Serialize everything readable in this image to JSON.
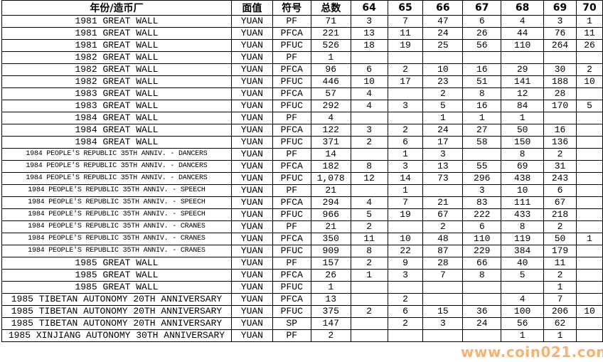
{
  "headers": [
    "年份/造币厂",
    "面值",
    "符号",
    "总数",
    "64",
    "65",
    "66",
    "67",
    "68",
    "69",
    "70"
  ],
  "rows": [
    [
      "1981 GREAT WALL",
      "YUAN",
      "PF",
      "71",
      "3",
      "7",
      "47",
      "6",
      "4",
      "3",
      "1"
    ],
    [
      "1981 GREAT WALL",
      "YUAN",
      "PFCA",
      "221",
      "13",
      "11",
      "24",
      "26",
      "44",
      "76",
      "11"
    ],
    [
      "1981 GREAT WALL",
      "YUAN",
      "PFUC",
      "526",
      "18",
      "19",
      "25",
      "56",
      "110",
      "264",
      "26"
    ],
    [
      "1982 GREAT WALL",
      "YUAN",
      "PF",
      "1",
      "",
      "",
      "",
      "",
      "",
      "",
      ""
    ],
    [
      "1982 GREAT WALL",
      "YUAN",
      "PFCA",
      "96",
      "6",
      "2",
      "10",
      "16",
      "29",
      "30",
      "2"
    ],
    [
      "1982 GREAT WALL",
      "YUAN",
      "PFUC",
      "446",
      "10",
      "17",
      "23",
      "51",
      "141",
      "188",
      "10"
    ],
    [
      "1983 GREAT WALL",
      "YUAN",
      "PFCA",
      "57",
      "4",
      "",
      "2",
      "8",
      "12",
      "28",
      ""
    ],
    [
      "1983 GREAT WALL",
      "YUAN",
      "PFUC",
      "292",
      "4",
      "3",
      "5",
      "16",
      "84",
      "170",
      "5"
    ],
    [
      "1984 GREAT WALL",
      "YUAN",
      "PF",
      "4",
      "",
      "",
      "1",
      "1",
      "1",
      "",
      ""
    ],
    [
      "1984 GREAT WALL",
      "YUAN",
      "PFCA",
      "122",
      "3",
      "2",
      "24",
      "27",
      "50",
      "16",
      ""
    ],
    [
      "1984 GREAT WALL",
      "YUAN",
      "PFUC",
      "371",
      "2",
      "6",
      "17",
      "58",
      "150",
      "136",
      ""
    ],
    [
      "1984 PEOPLE'S REPUBLIC 35TH ANNIV. - DANCERS",
      "YUAN",
      "PF",
      "14",
      "",
      "1",
      "3",
      "",
      "8",
      "2",
      ""
    ],
    [
      "1984 PEOPLE'S REPUBLIC 35TH ANNIV. - DANCERS",
      "YUAN",
      "PFCA",
      "182",
      "8",
      "3",
      "13",
      "55",
      "69",
      "31",
      ""
    ],
    [
      "1984 PEOPLE'S REPUBLIC 35TH ANNIV. - DANCERS",
      "YUAN",
      "PFUC",
      "1,078",
      "12",
      "14",
      "73",
      "296",
      "438",
      "243",
      ""
    ],
    [
      "1984 PEOPLE'S REPUBLIC 35TH ANNIV. - SPEECH",
      "YUAN",
      "PF",
      "21",
      "",
      "1",
      "",
      "3",
      "10",
      "6",
      ""
    ],
    [
      "1984 PEOPLE'S REPUBLIC 35TH ANNIV. - SPEECH",
      "YUAN",
      "PFCA",
      "294",
      "4",
      "7",
      "21",
      "83",
      "111",
      "67",
      ""
    ],
    [
      "1984 PEOPLE'S REPUBLIC 35TH ANNIV. - SPEECH",
      "YUAN",
      "PFUC",
      "966",
      "5",
      "19",
      "67",
      "222",
      "433",
      "218",
      ""
    ],
    [
      "1984 PEOPLE'S REPUBLIC 35TH ANNIV. - CRANES",
      "YUAN",
      "PF",
      "21",
      "2",
      "",
      "2",
      "6",
      "8",
      "2",
      ""
    ],
    [
      "1984 PEOPLE'S REPUBLIC 35TH ANNIV. - CRANES",
      "YUAN",
      "PFCA",
      "350",
      "11",
      "10",
      "48",
      "110",
      "119",
      "50",
      "1"
    ],
    [
      "1984 PEOPLE'S REPUBLIC 35TH ANNIV. - CRANES",
      "YUAN",
      "PFUC",
      "909",
      "8",
      "22",
      "87",
      "229",
      "384",
      "179",
      ""
    ],
    [
      "1985 GREAT WALL",
      "YUAN",
      "PF",
      "157",
      "2",
      "9",
      "28",
      "66",
      "40",
      "11",
      ""
    ],
    [
      "1985 GREAT WALL",
      "YUAN",
      "PFCA",
      "26",
      "1",
      "3",
      "7",
      "8",
      "5",
      "2",
      ""
    ],
    [
      "1985 GREAT WALL",
      "YUAN",
      "PFUC",
      "1",
      "",
      "",
      "",
      "",
      "",
      "1",
      ""
    ],
    [
      "1985 TIBETAN AUTONOMY 20TH ANNIVERSARY",
      "YUAN",
      "PFCA",
      "13",
      "",
      "2",
      "",
      "",
      "4",
      "7",
      ""
    ],
    [
      "1985 TIBETAN AUTONOMY 20TH ANNIVERSARY",
      "YUAN",
      "PFUC",
      "375",
      "2",
      "6",
      "15",
      "36",
      "100",
      "206",
      "10"
    ],
    [
      "1985 TIBETAN AUTONOMY 20TH ANNIVERSARY",
      "YUAN",
      "SP",
      "147",
      "",
      "2",
      "3",
      "24",
      "56",
      "62",
      ""
    ],
    [
      "1985 XINJIANG AUTONOMY 30TH ANNIVERSARY",
      "YUAN",
      "PF",
      "2",
      "",
      "",
      "",
      "",
      "1",
      "1",
      ""
    ]
  ],
  "watermark": "www.coin021.com",
  "colors": {
    "watermark": "#f5a04a",
    "grid": "#000000"
  }
}
